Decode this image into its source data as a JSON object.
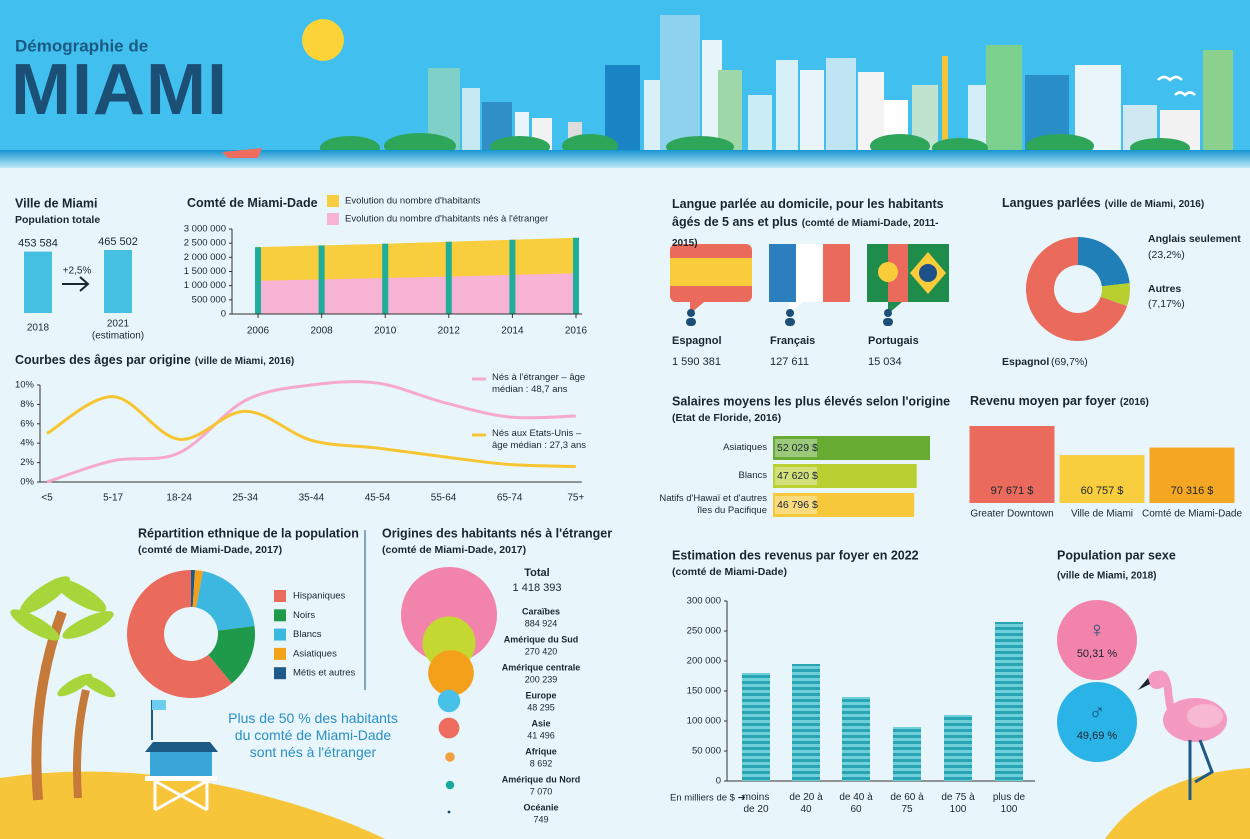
{
  "header": {
    "subtitle": "Démographie de",
    "title": "MIAMI"
  },
  "chart_data": [
    {
      "type": "bar",
      "title": "Ville de Miami",
      "subtitle": "Population totale",
      "categories": [
        "2018",
        "2021"
      ],
      "category_note": "(estimation)",
      "values": [
        453584,
        465502
      ],
      "value_labels": [
        "453 584",
        "465 502"
      ],
      "annotation": "+2,5%",
      "color": "#45c0e3"
    },
    {
      "type": "area",
      "title": "Comté de Miami-Dade",
      "x": [
        2006,
        2008,
        2010,
        2012,
        2014,
        2016
      ],
      "series": [
        {
          "name": "Evolution du nombre d'habitants",
          "color": "#f8cd3e",
          "values": [
            2360000,
            2420000,
            2480000,
            2550000,
            2620000,
            2690000
          ]
        },
        {
          "name": "Evolution du nombre d'habitants nés à l'étranger",
          "color": "#f6b3d3",
          "values": [
            1170000,
            1220000,
            1270000,
            1320000,
            1380000,
            1440000
          ]
        }
      ],
      "marker_color": "#1fae9a",
      "xlim": [
        2006,
        2016
      ],
      "xticks": [
        2006,
        2008,
        2010,
        2012,
        2014,
        2016
      ],
      "ylim": [
        0,
        3000000
      ],
      "yticks": [
        0,
        {
          "value": 500000,
          "label": "500 000"
        },
        {
          "value": 1000000,
          "label": "1 000 000"
        },
        {
          "value": 1500000,
          "label": "1 500 000"
        },
        {
          "value": 2000000,
          "label": "2 000 000"
        },
        {
          "value": 2500000,
          "label": "2 500 000"
        },
        {
          "value": 3000000,
          "label": "3 000 000"
        }
      ]
    },
    {
      "type": "line",
      "title": "Courbes des âges par origine",
      "subtitle": "(ville de Miami, 2016)",
      "categories": [
        "<5",
        "5-17",
        "18-24",
        "25-34",
        "35-44",
        "45-54",
        "55-64",
        "65-74",
        "75+"
      ],
      "series": [
        {
          "name": "Nés à l'étranger – âge médian : 48,7 ans",
          "color": "#f6a9cc",
          "values": [
            0,
            2.2,
            3,
            8.4,
            10,
            10.2,
            8.2,
            6.7,
            6.8
          ]
        },
        {
          "name": "Nés aux Etats-Unis – âge médian : 27,3 ans",
          "color": "#f7c531",
          "values": [
            5,
            8.8,
            4.4,
            7.3,
            4.3,
            3.5,
            2.6,
            1.8,
            1.6
          ]
        }
      ],
      "ylim": [
        0,
        10
      ],
      "yticks": [
        {
          "value": 0,
          "label": "0%"
        },
        {
          "value": 2,
          "label": "2%"
        },
        {
          "value": 4,
          "label": "4%"
        },
        {
          "value": 6,
          "label": "6%"
        },
        {
          "value": 8,
          "label": "8%"
        },
        {
          "value": 10,
          "label": "10%"
        }
      ]
    },
    {
      "type": "donut",
      "title": "Langues parlées",
      "subtitle": "(ville de Miami, 2016)",
      "categories": [
        "Anglais seulement",
        "Autres",
        "Espagnol"
      ],
      "values": [
        23.2,
        7.17,
        69.7
      ],
      "value_labels": [
        "(23,2%)",
        "(7,17%)",
        "(69,7%)"
      ],
      "colors": [
        "#1f7fb6",
        "#b6cf2e",
        "#ea6a5c"
      ]
    },
    {
      "type": "hbar",
      "title": "Salaires moyens les plus élevés selon l'origine",
      "subtitle": "(Etat de Floride, 2016)",
      "categories": [
        "Asiatiques",
        "Blancs",
        "Natifs d'Hawaï et d'autres îles du Pacifique"
      ],
      "values": [
        52029,
        47620,
        46796
      ],
      "value_labels": [
        "52 029 $",
        "47 620 $",
        "46 796 $"
      ],
      "colors": [
        "#67ab33",
        "#b9d032",
        "#f7c83a"
      ]
    },
    {
      "type": "bar",
      "title": "Revenu moyen par foyer",
      "subtitle": "(2016)",
      "categories": [
        "Greater Downtown",
        "Ville de Miami",
        "Comté de Miami-Dade"
      ],
      "values": [
        97671,
        60757,
        70316
      ],
      "value_labels": [
        "97 671 $",
        "60 757 $",
        "70 316 $"
      ],
      "colors": [
        "#ea6a5c",
        "#f8cd3e",
        "#f5a623"
      ]
    },
    {
      "type": "donut",
      "title": "Répartition ethnique de la population",
      "subtitle": "(comté de Miami-Dade, 2017)",
      "categories": [
        "Hispaniques",
        "Noirs",
        "Blancs",
        "Asiatiques",
        "Métis et autres"
      ],
      "values": [
        61,
        16,
        20,
        2,
        1
      ],
      "colors": [
        "#ea6a5c",
        "#1f9a4b",
        "#3cb7e0",
        "#f5a01a",
        "#1d5a86"
      ],
      "legend": true
    },
    {
      "type": "bubble",
      "title": "Origines des habitants nés à l'étranger",
      "subtitle": "(comté de Miami-Dade, 2017)",
      "total": {
        "label": "Total",
        "value": 1418393,
        "value_label": "1 418 393"
      },
      "categories": [
        "Caraïbes",
        "Amérique du Sud",
        "Amérique centrale",
        "Europe",
        "Asie",
        "Afrique",
        "Amérique du Nord",
        "Océanie"
      ],
      "values": [
        884924,
        270420,
        200239,
        48295,
        41496,
        8692,
        7070,
        749
      ],
      "value_labels": [
        "884 924",
        "270 420",
        "200 239",
        "48 295",
        "41 496",
        "8 692",
        "7 070",
        "749"
      ],
      "colors": [
        "#f283ab",
        "#c4d832",
        "#f5a01a",
        "#47c1e8",
        "#ef6d5e",
        "#f0a040",
        "#1aa89a",
        "#1c3f6e"
      ]
    },
    {
      "type": "bar",
      "title": "Estimation des revenus par foyer en 2022",
      "subtitle": "(comté de Miami-Dade)",
      "x_label": "En milliers de $ ➔",
      "categories": [
        "moins de 20",
        "de 20 à 40",
        "de 40 à 60",
        "de 60 à 75",
        "de 75 à 100",
        "plus de 100"
      ],
      "values": [
        180000,
        195000,
        140000,
        90000,
        110000,
        265000
      ],
      "color": "#29a4b4",
      "ylim": [
        0,
        300000
      ],
      "yticks": [
        0,
        {
          "value": 50000,
          "label": "50 000"
        },
        {
          "value": 100000,
          "label": "100 000"
        },
        {
          "value": 150000,
          "label": "150 000"
        },
        {
          "value": 200000,
          "label": "200 000"
        },
        {
          "value": 250000,
          "label": "250 000"
        },
        {
          "value": 300000,
          "label": "300 000"
        }
      ]
    }
  ],
  "home_languages": {
    "title": "Langue parlée au domicile, pour les habitants âgés de 5 ans et plus",
    "subtitle": "(comté de Miami-Dade, 2011-2015)",
    "items": [
      {
        "language": "Espagnol",
        "speakers": "1 590 381"
      },
      {
        "language": "Français",
        "speakers": "127 611"
      },
      {
        "language": "Portugais",
        "speakers": "15 034"
      }
    ]
  },
  "gender": {
    "title": "Population par sexe",
    "subtitle": "(ville de Miami, 2018)",
    "items": [
      {
        "symbol": "♀",
        "share": "50,31 %"
      },
      {
        "symbol": "♂",
        "share": "49,69 %"
      }
    ]
  },
  "note": "Plus de 50 % des habitants du comté de Miami-Dade sont nés à l'étranger"
}
